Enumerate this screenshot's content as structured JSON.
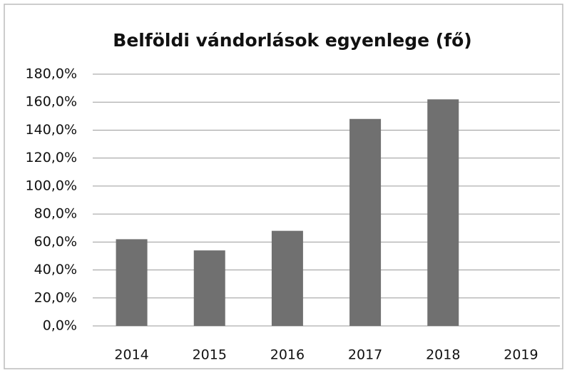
{
  "chart_data": {
    "type": "bar",
    "title": "Belföldi vándorlások egyenlege (fő)",
    "categories": [
      "2014",
      "2015",
      "2016",
      "2017",
      "2018",
      "2019"
    ],
    "values": [
      62,
      54,
      68,
      148,
      162,
      null
    ],
    "color": "#707070",
    "ylim": [
      0,
      180
    ],
    "yticks": [
      {
        "value": 0,
        "label": "0,0%"
      },
      {
        "value": 20,
        "label": "20,0%"
      },
      {
        "value": 40,
        "label": "40,0%"
      },
      {
        "value": 60,
        "label": "60,0%"
      },
      {
        "value": 80,
        "label": "80,0%"
      },
      {
        "value": 100,
        "label": "100,0%"
      },
      {
        "value": 120,
        "label": "120,0%"
      },
      {
        "value": 140,
        "label": "140,0%"
      },
      {
        "value": 160,
        "label": "160,0%"
      },
      {
        "value": 180,
        "label": "180,0%"
      }
    ],
    "grid": true
  }
}
